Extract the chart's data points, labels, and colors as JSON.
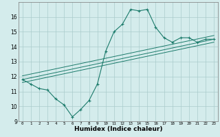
{
  "title": "",
  "xlabel": "Humidex (Indice chaleur)",
  "ylabel": "",
  "bg_color": "#d4ecec",
  "grid_color": "#aacccc",
  "line_color": "#1a7a6a",
  "xlim": [
    -0.5,
    23.5
  ],
  "ylim": [
    9,
    17
  ],
  "yticks": [
    9,
    10,
    11,
    12,
    13,
    14,
    15,
    16
  ],
  "xticks": [
    0,
    1,
    2,
    3,
    4,
    5,
    6,
    7,
    8,
    9,
    10,
    11,
    12,
    13,
    14,
    15,
    16,
    17,
    18,
    19,
    20,
    21,
    22,
    23
  ],
  "xtick_labels": [
    "0",
    "1",
    "2",
    "3",
    "4",
    "5",
    "6",
    "7",
    "8",
    "9",
    "10",
    "11",
    "12",
    "13",
    "14",
    "15",
    "16",
    "17",
    "18",
    "19",
    "20",
    "21",
    "22",
    "23"
  ],
  "series1_x": [
    0,
    1,
    2,
    3,
    4,
    5,
    6,
    7,
    8,
    9,
    10,
    11,
    12,
    13,
    14,
    15,
    16,
    17,
    18,
    19,
    20,
    21,
    22,
    23
  ],
  "series1_y": [
    11.8,
    11.5,
    11.2,
    11.1,
    10.5,
    10.1,
    9.3,
    9.8,
    10.4,
    11.5,
    13.7,
    15.0,
    15.5,
    16.5,
    16.4,
    16.5,
    15.3,
    14.6,
    14.3,
    14.6,
    14.6,
    14.3,
    14.5,
    14.5
  ],
  "series2_x": [
    0,
    23
  ],
  "series2_y": [
    11.8,
    14.5
  ],
  "series3_x": [
    0,
    23
  ],
  "series3_y": [
    12.05,
    14.75
  ],
  "series4_x": [
    0,
    23
  ],
  "series4_y": [
    11.6,
    14.3
  ]
}
